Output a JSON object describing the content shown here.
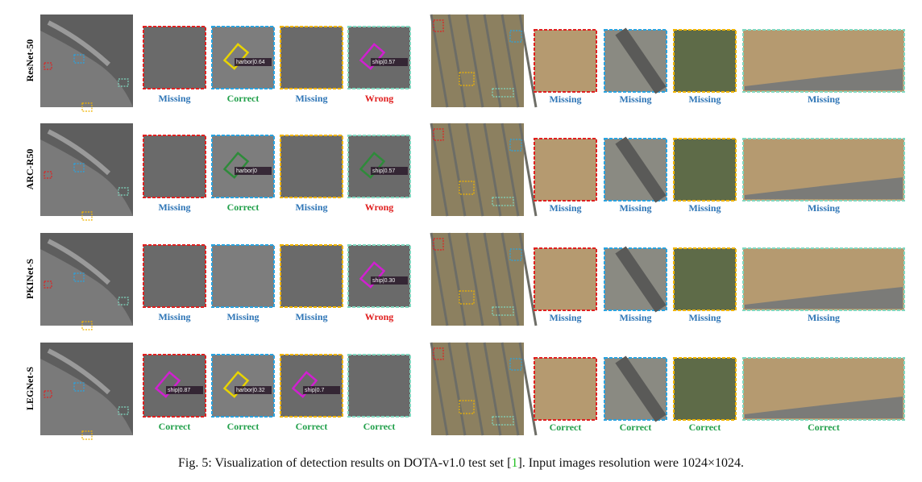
{
  "figure": {
    "rows": [
      {
        "name": "ResNet-50",
        "left": [
          {
            "status": "Missing",
            "color": "#2e75b6"
          },
          {
            "status": "Correct",
            "color": "#22a04b",
            "detection": {
              "label": "harbor|0.64",
              "color": "#e8d400"
            }
          },
          {
            "status": "Missing",
            "color": "#2e75b6"
          },
          {
            "status": "Wrong",
            "color": "#e02020",
            "detection": {
              "label": "ship|0.57",
              "color": "#d020d0"
            }
          }
        ],
        "right": [
          {
            "status": "Missing",
            "color": "#2e75b6"
          },
          {
            "status": "Missing",
            "color": "#2e75b6"
          },
          {
            "status": "Missing",
            "color": "#2e75b6"
          },
          {
            "status": "Missing",
            "color": "#2e75b6"
          }
        ]
      },
      {
        "name": "ARC-R50",
        "left": [
          {
            "status": "Missing",
            "color": "#2e75b6"
          },
          {
            "status": "Correct",
            "color": "#22a04b",
            "detection": {
              "label": "harbor|0",
              "color": "#2e8b3a"
            }
          },
          {
            "status": "Missing",
            "color": "#2e75b6"
          },
          {
            "status": "Wrong",
            "color": "#e02020",
            "detection": {
              "label": "ship|0.57",
              "color": "#2e8b3a"
            }
          }
        ],
        "right": [
          {
            "status": "Missing",
            "color": "#2e75b6"
          },
          {
            "status": "Missing",
            "color": "#2e75b6"
          },
          {
            "status": "Missing",
            "color": "#2e75b6"
          },
          {
            "status": "Missing",
            "color": "#2e75b6"
          }
        ]
      },
      {
        "name": "PKINet-S",
        "left": [
          {
            "status": "Missing",
            "color": "#2e75b6"
          },
          {
            "status": "Missing",
            "color": "#2e75b6"
          },
          {
            "status": "Missing",
            "color": "#2e75b6"
          },
          {
            "status": "Wrong",
            "color": "#e02020",
            "detection": {
              "label": "ship|0.30",
              "color": "#d020d0"
            }
          }
        ],
        "right": [
          {
            "status": "Missing",
            "color": "#2e75b6"
          },
          {
            "status": "Missing",
            "color": "#2e75b6"
          },
          {
            "status": "Missing",
            "color": "#2e75b6"
          },
          {
            "status": "Missing",
            "color": "#2e75b6"
          }
        ]
      },
      {
        "name": "LEGNet-S",
        "left": [
          {
            "status": "Correct",
            "color": "#22a04b",
            "detection": {
              "label": "ship|0.87",
              "color": "#d020d0"
            }
          },
          {
            "status": "Correct",
            "color": "#22a04b",
            "detection": {
              "label": "harbor|0.32",
              "color": "#e8d400"
            }
          },
          {
            "status": "Correct",
            "color": "#22a04b",
            "detection": {
              "label": "ship|0.7",
              "color": "#d020d0"
            }
          },
          {
            "status": "Correct",
            "color": "#22a04b"
          }
        ],
        "right": [
          {
            "status": "Correct",
            "color": "#22a04b"
          },
          {
            "status": "Correct",
            "color": "#22a04b"
          },
          {
            "status": "Correct",
            "color": "#22a04b"
          },
          {
            "status": "Correct",
            "color": "#22a04b"
          }
        ]
      }
    ],
    "caption": {
      "before": "Fig. 5: Visualization of detection results on DOTA-v1.0 test set [",
      "ref": "1",
      "after": "]. Input images resolution were 1024×1024."
    }
  }
}
